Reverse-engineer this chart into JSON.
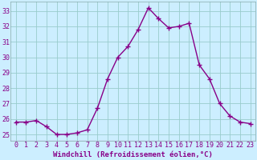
{
  "hours": [
    0,
    1,
    2,
    3,
    4,
    5,
    6,
    7,
    8,
    9,
    10,
    11,
    12,
    13,
    14,
    15,
    16,
    17,
    18,
    19,
    20,
    21,
    22,
    23
  ],
  "values": [
    25.8,
    25.8,
    25.9,
    25.5,
    25.0,
    25.0,
    25.1,
    25.3,
    26.7,
    28.6,
    30.0,
    30.7,
    31.8,
    33.2,
    32.5,
    31.9,
    32.0,
    32.2,
    29.5,
    28.6,
    27.0,
    26.2,
    25.8,
    25.7
  ],
  "line_color": "#880088",
  "marker": "+",
  "marker_size": 4,
  "marker_lw": 1.0,
  "bg_color": "#cceeff",
  "grid_color": "#99cccc",
  "ylabel_ticks": [
    25,
    26,
    27,
    28,
    29,
    30,
    31,
    32,
    33
  ],
  "ylim": [
    24.6,
    33.6
  ],
  "xlim": [
    -0.5,
    23.5
  ],
  "xlabel": "Windchill (Refroidissement éolien,°C)",
  "xlabel_fontsize": 6.5,
  "tick_fontsize": 6.0,
  "line_width": 1.0,
  "text_color": "#880088"
}
